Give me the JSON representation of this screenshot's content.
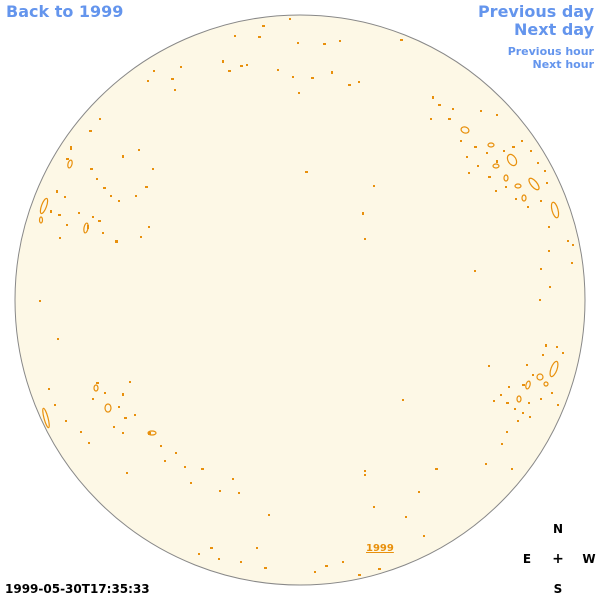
{
  "nav": {
    "back_label": "Back to 1999",
    "prev_day_label": "Previous day",
    "next_day_label": "Next day",
    "prev_hour_label": "Previous hour",
    "next_hour_label": "Next hour"
  },
  "timestamp": "1999-05-30T17:35:33",
  "year_link": "1999",
  "compass": {
    "north": "N",
    "south": "S",
    "east": "E",
    "west": "W",
    "center": "+"
  },
  "colors": {
    "nav_link": "#6495ed",
    "disk_fill": "#fdf8e6",
    "disk_outline": "#888888",
    "contour": "#e8900c"
  }
}
